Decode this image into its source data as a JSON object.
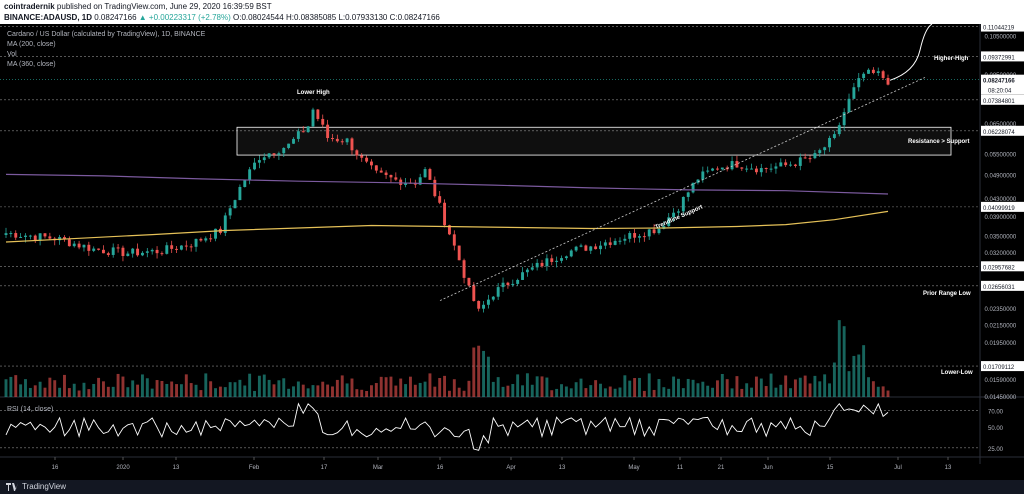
{
  "header": {
    "publisher": "cointradernik",
    "published_text": "published on TradingView.com, June 29, 2020 16:39:59 BST",
    "symbol": "BINANCE:ADAUSD, 1D",
    "last": "0.08247166",
    "change": "+0.00223317 (+2.78%)",
    "o_label": "O:",
    "o": "0.08024544",
    "h_label": "H:",
    "h": "0.08385085",
    "l_label": "L:",
    "l": "0.07933130",
    "c_label": "C:",
    "c": "0.08247166"
  },
  "legend": {
    "title": "Cardano / US Dollar (calculated by TradingView), 1D, BINANCE",
    "ma200": "MA (200, close)",
    "vol": "Vol",
    "ma360": "MA (360, close)"
  },
  "rsi_legend": "RSI (14, close)",
  "footer": {
    "brand": "TradingView"
  },
  "colors": {
    "up": "#26a69a",
    "down": "#ef5350",
    "ma200": "#e5c158",
    "ma360": "#7b5a9e",
    "rsi": "#ffffff",
    "price_label_bg": "#ffffff",
    "background": "#000000"
  },
  "chart_data": {
    "type": "candlestick",
    "annotations": [
      {
        "text": "Lower High"
      },
      {
        "text": "Higher-High"
      },
      {
        "text": "Resistance > Support"
      },
      {
        "text": "Trendline Support"
      },
      {
        "text": "Prior Range Low"
      },
      {
        "text": "Lower-Low"
      }
    ],
    "y_ticks": [
      "0.10500000",
      "0.08500000",
      "0.06500000",
      "0.05500000",
      "0.04900000",
      "0.04300000",
      "0.03900000",
      "0.03500000",
      "0.03200000",
      "0.02350000",
      "0.02150000",
      "0.01950000",
      "0.01590000",
      "0.01450000"
    ],
    "level_labels": [
      "0.11044219",
      "0.09372991",
      "0.07384801",
      "0.06228074",
      "0.04099919",
      "0.02957682",
      "0.02656031",
      "0.01709112"
    ],
    "current_price": "0.08247166",
    "current_time": "08:20:04",
    "rsi_ticks": [
      "70.00",
      "50.00",
      "25.00"
    ],
    "x_ticks": [
      "16",
      "2020",
      "13",
      "Feb",
      "17",
      "Mar",
      "16",
      "Apr",
      "13",
      "May",
      "11",
      "21",
      "Jun",
      "15",
      "Jul",
      "13"
    ],
    "ylim": [
      0.0145,
      0.112
    ],
    "log_scale": true,
    "grid": false
  }
}
